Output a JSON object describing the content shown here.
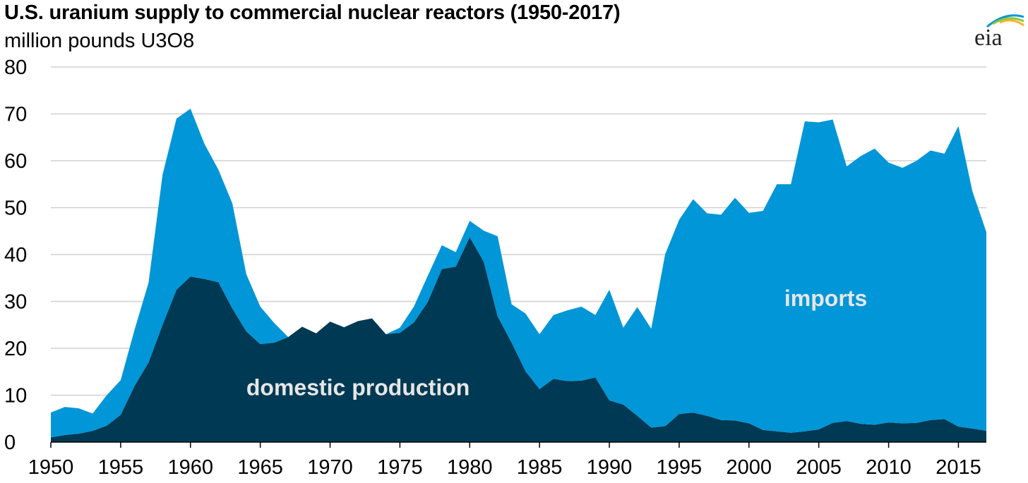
{
  "chart_data": {
    "type": "area",
    "stacked": true,
    "title": "U.S. uranium supply to commercial nuclear reactors (1950-2017)",
    "subtitle": "million pounds U3O8",
    "xlim": [
      1950,
      2017
    ],
    "ylim": [
      0,
      80
    ],
    "y_ticks": [
      0,
      10,
      20,
      30,
      40,
      50,
      60,
      70,
      80
    ],
    "x_ticks": [
      1950,
      1955,
      1960,
      1965,
      1970,
      1975,
      1980,
      1985,
      1990,
      1995,
      2000,
      2005,
      2010,
      2015
    ],
    "grid": "horizontal",
    "x": [
      1950,
      1951,
      1952,
      1953,
      1954,
      1955,
      1956,
      1957,
      1958,
      1959,
      1960,
      1961,
      1962,
      1963,
      1964,
      1965,
      1966,
      1967,
      1968,
      1969,
      1970,
      1971,
      1972,
      1973,
      1974,
      1975,
      1976,
      1977,
      1978,
      1979,
      1980,
      1981,
      1982,
      1983,
      1984,
      1985,
      1986,
      1987,
      1988,
      1989,
      1990,
      1991,
      1992,
      1993,
      1994,
      1995,
      1996,
      1997,
      1998,
      1999,
      2000,
      2001,
      2002,
      2003,
      2004,
      2005,
      2006,
      2007,
      2008,
      2009,
      2010,
      2011,
      2012,
      2013,
      2014,
      2015,
      2016,
      2017
    ],
    "series": [
      {
        "name": "domestic production",
        "color": "#003953",
        "values": [
          1.0,
          1.5,
          1.8,
          2.4,
          3.5,
          5.8,
          12,
          17,
          25,
          32.5,
          35.3,
          34.8,
          34.1,
          28.5,
          23.6,
          20.9,
          21.2,
          22.4,
          24.6,
          23.2,
          25.7,
          24.5,
          25.8,
          26.4,
          23.0,
          23.3,
          25.5,
          29.9,
          36.9,
          37.4,
          43.7,
          38.5,
          26.8,
          21.2,
          15.1,
          11.3,
          13.5,
          13.0,
          13.1,
          13.8,
          8.9,
          8.0,
          5.6,
          3.1,
          3.4,
          6.0,
          6.3,
          5.6,
          4.7,
          4.6,
          4.0,
          2.6,
          2.3,
          2.0,
          2.3,
          2.7,
          4.1,
          4.5,
          3.9,
          3.7,
          4.2,
          4.0,
          4.1,
          4.7,
          4.9,
          3.3,
          2.9,
          2.4
        ]
      },
      {
        "name": "imports",
        "color": "#0096d7",
        "values": [
          5.3,
          6.0,
          5.4,
          3.7,
          6.5,
          7.4,
          12,
          17,
          32,
          36.5,
          35.8,
          28.8,
          24.0,
          22.4,
          12.2,
          8.0,
          4.2,
          0,
          0,
          0,
          0,
          0,
          0,
          0,
          0,
          1.1,
          3.4,
          5.6,
          5.1,
          3.1,
          3.5,
          6.6,
          17.1,
          8.2,
          12.3,
          11.7,
          13.6,
          15.1,
          15.8,
          13.3,
          23.6,
          16.4,
          23.2,
          21.1,
          36.7,
          41.4,
          45.5,
          43.2,
          43.8,
          47.5,
          44.9,
          46.7,
          52.7,
          53.0,
          66.1,
          65.5,
          64.7,
          54.3,
          57.1,
          58.9,
          55.4,
          54.5,
          55.9,
          57.5,
          56.6,
          64.1,
          50.6,
          42.4
        ]
      }
    ],
    "annotations": [
      {
        "text": "domestic production",
        "x": 1972,
        "y": 10,
        "color": "#e6e6e6"
      },
      {
        "text": "imports",
        "x": 2005.5,
        "y": 29,
        "color": "#e6e6e6"
      }
    ],
    "logo": {
      "text": "eia",
      "arc_colors": [
        "#0096d7",
        "#8cc63f",
        "#f7b52c"
      ]
    }
  }
}
